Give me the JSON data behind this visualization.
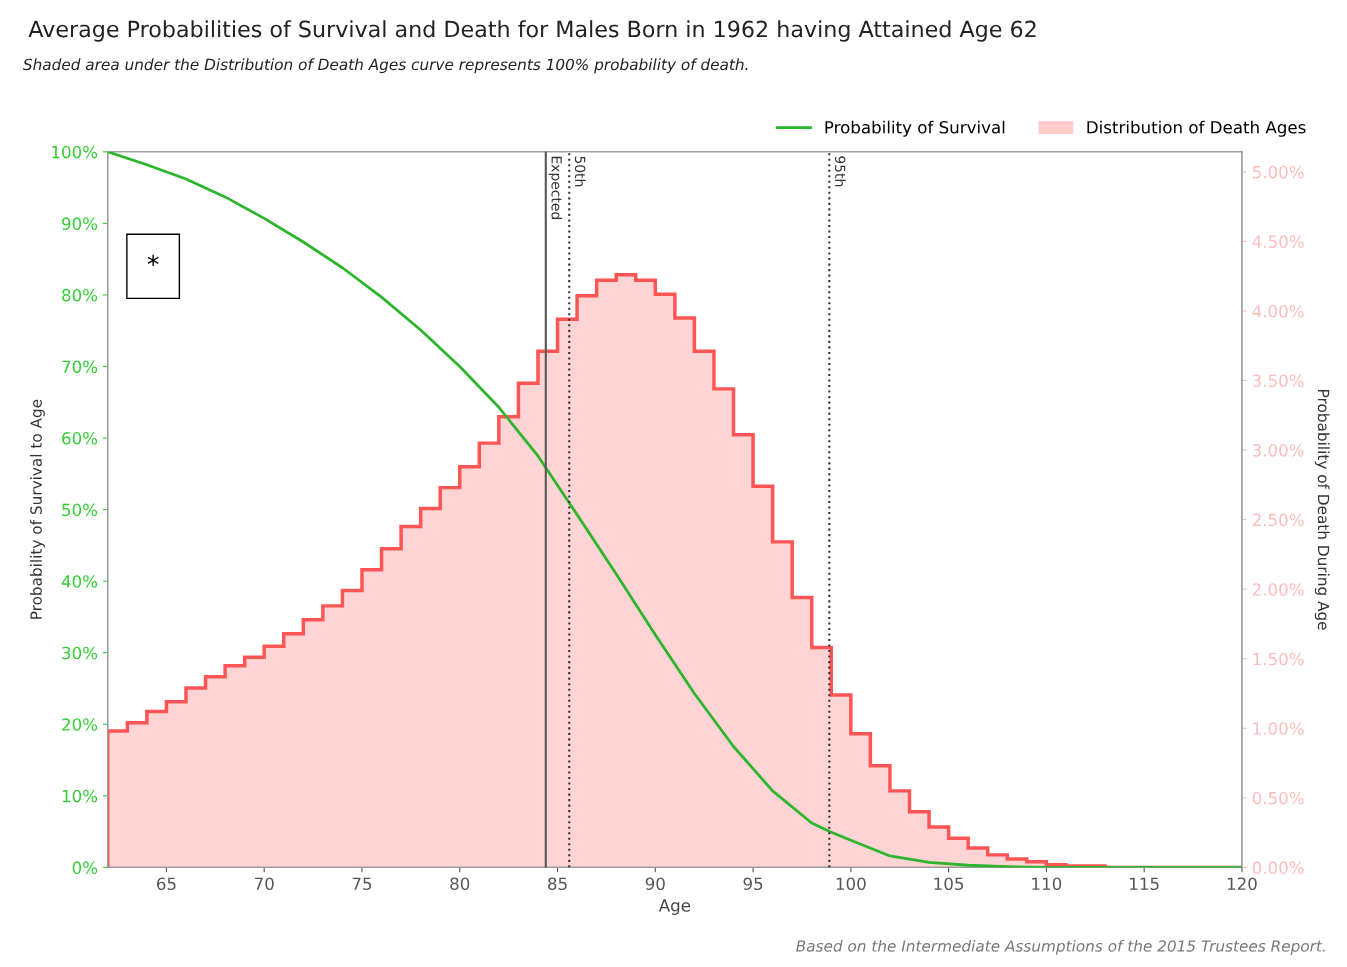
{
  "chart_data": {
    "type": "line",
    "title": "Average Probabilities of Survival and Death for Males Born in 1962 having Attained Age 62",
    "subtitle": "Shaded area under the Distribution of Death Ages curve represents 100% probability of death.",
    "xlabel": "Age",
    "ylabel": "Probability of Survival to Age",
    "y2label": "Probability of Death During Age",
    "annotations": [
      "*",
      "Based on the Intermediate Assumptions of the 2015 Trustees Report."
    ],
    "xlim": [
      62,
      120
    ],
    "xticks": [
      65,
      70,
      75,
      80,
      85,
      90,
      95,
      100,
      105,
      110,
      115,
      120
    ],
    "ylim": [
      0,
      100
    ],
    "yticks": [
      {
        "value": 0,
        "label": "0%"
      },
      {
        "value": 10,
        "label": "10%"
      },
      {
        "value": 20,
        "label": "20%"
      },
      {
        "value": 30,
        "label": "30%"
      },
      {
        "value": 40,
        "label": "40%"
      },
      {
        "value": 50,
        "label": "50%"
      },
      {
        "value": 60,
        "label": "60%"
      },
      {
        "value": 70,
        "label": "70%"
      },
      {
        "value": 80,
        "label": "80%"
      },
      {
        "value": 90,
        "label": "90%"
      },
      {
        "value": 100,
        "label": "100%"
      }
    ],
    "y2lim": [
      0,
      5.144
    ],
    "y2ticks": [
      {
        "value": 0,
        "label": "0.00%"
      },
      {
        "value": 0.5,
        "label": "0.50%"
      },
      {
        "value": 1,
        "label": "1.00%"
      },
      {
        "value": 1.5,
        "label": "1.50%"
      },
      {
        "value": 2,
        "label": "2.00%"
      },
      {
        "value": 2.5,
        "label": "2.50%"
      },
      {
        "value": 3,
        "label": "3.00%"
      },
      {
        "value": 3.5,
        "label": "3.50%"
      },
      {
        "value": 4,
        "label": "4.00%"
      },
      {
        "value": 4.5,
        "label": "4.50%"
      },
      {
        "value": 5,
        "label": "5.00%"
      }
    ],
    "series": [
      {
        "name": "Probability of Survival",
        "color": "#2db52d",
        "x": [
          62,
          64,
          66,
          68,
          70,
          72,
          74,
          76,
          78,
          80,
          82,
          84,
          86,
          88,
          90,
          92,
          94,
          96,
          98,
          99,
          100,
          102,
          104,
          106,
          108,
          110,
          120
        ],
        "values": [
          100,
          98.2,
          96.2,
          93.7,
          90.7,
          87.4,
          83.8,
          79.7,
          75.1,
          70.0,
          64.3,
          57.5,
          49.3,
          41.0,
          32.5,
          24.3,
          16.9,
          10.7,
          6.2,
          4.9,
          3.8,
          1.6,
          0.7,
          0.3,
          0.1,
          0,
          0
        ]
      },
      {
        "name": "Distribution of Death Ages",
        "type": "histogram",
        "axis": "y2",
        "color": "#ff5555",
        "bins": [
          62,
          63,
          64,
          65,
          66,
          67,
          68,
          69,
          70,
          71,
          72,
          73,
          74,
          75,
          76,
          77,
          78,
          79,
          80,
          81,
          82,
          83,
          84,
          85,
          86,
          87,
          88,
          89,
          90,
          91,
          92,
          93,
          94,
          95,
          96,
          97,
          98,
          99,
          100,
          101,
          102,
          103,
          104,
          105,
          106,
          107,
          108,
          109,
          110,
          111,
          112,
          113,
          114,
          115,
          116,
          117,
          118,
          119,
          120
        ],
        "values": [
          0.98,
          1.04,
          1.12,
          1.19,
          1.29,
          1.37,
          1.45,
          1.51,
          1.59,
          1.68,
          1.78,
          1.88,
          1.99,
          2.14,
          2.29,
          2.45,
          2.58,
          2.73,
          2.88,
          3.05,
          3.24,
          3.48,
          3.71,
          3.94,
          4.11,
          4.22,
          4.26,
          4.22,
          4.12,
          3.95,
          3.71,
          3.44,
          3.11,
          2.74,
          2.34,
          1.94,
          1.58,
          1.24,
          0.96,
          0.73,
          0.55,
          0.4,
          0.29,
          0.21,
          0.14,
          0.09,
          0.06,
          0.04,
          0.02,
          0.01,
          0.01,
          0,
          0,
          0,
          0,
          0,
          0,
          0
        ]
      }
    ],
    "ref_lines": [
      {
        "axis": "x",
        "value": 84.4,
        "label": "Expected",
        "color": "#555555",
        "line_style": "solid"
      },
      {
        "axis": "x",
        "value": 85.6,
        "label": "50th",
        "color": "#333333",
        "line_style": "dotted"
      },
      {
        "axis": "x",
        "value": 98.9,
        "label": "95th",
        "color": "#333333",
        "line_style": "dotted"
      }
    ],
    "legend": "top right",
    "grid": false
  }
}
